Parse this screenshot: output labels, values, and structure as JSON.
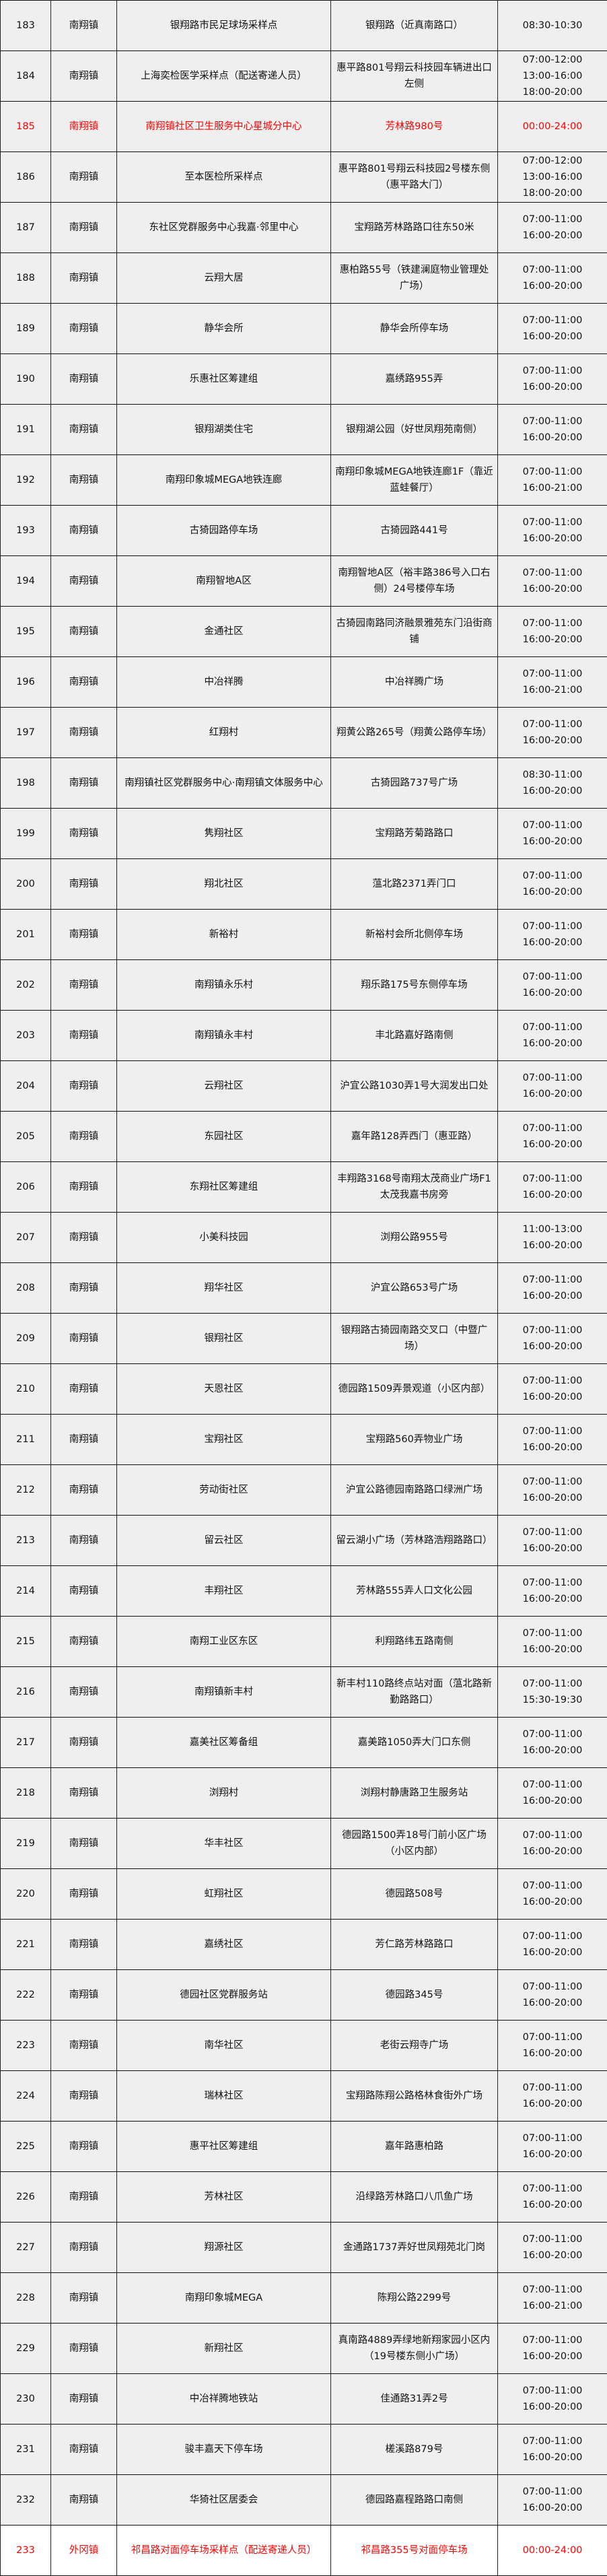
{
  "colors": {
    "highlight_text": "#ff0000",
    "row_bg": "#efefef",
    "border": "#111111"
  },
  "rows": [
    {
      "num": "183",
      "town": "南翔镇",
      "site": "银翔路市民足球场采样点",
      "addr": "银翔路（近真南路口）",
      "hours": [
        "08:30-10:30"
      ]
    },
    {
      "num": "184",
      "town": "南翔镇",
      "site": "上海奕检医学采样点（配送寄递人员）",
      "addr": "惠平路801号翔云科技园车辆进出口左侧",
      "hours": [
        "07:00-12:00",
        "13:00-16:00",
        "18:00-20:00"
      ]
    },
    {
      "num": "185",
      "town": "南翔镇",
      "site": "南翔镇社区卫生服务中心星城分中心",
      "addr": "芳林路980号",
      "hours": [
        "00:00-24:00"
      ],
      "highlight": true
    },
    {
      "num": "186",
      "town": "南翔镇",
      "site": "至本医检所采样点",
      "addr": "惠平路801号翔云科技园2号楼东侧（惠平路大门）",
      "hours": [
        "07:00-12:00",
        "13:00-16:00",
        "18:00-20:00"
      ]
    },
    {
      "num": "187",
      "town": "南翔镇",
      "site": "东社区党群服务中心我嘉·邻里中心",
      "addr": "宝翔路芳林路路口往东50米",
      "hours": [
        "07:00-11:00",
        "16:00-20:00"
      ]
    },
    {
      "num": "188",
      "town": "南翔镇",
      "site": "云翔大居",
      "addr": "惠柏路55号（铁建澜庭物业管理处广场）",
      "hours": [
        "07:00-11:00",
        "16:00-20:00"
      ]
    },
    {
      "num": "189",
      "town": "南翔镇",
      "site": "静华会所",
      "addr": "静华会所停车场",
      "hours": [
        "07:00-11:00",
        "16:00-20:00"
      ]
    },
    {
      "num": "190",
      "town": "南翔镇",
      "site": "乐惠社区筹建组",
      "addr": "嘉绣路955弄",
      "hours": [
        "07:00-11:00",
        "16:00-20:00"
      ]
    },
    {
      "num": "191",
      "town": "南翔镇",
      "site": "银翔湖类住宅",
      "addr": "银翔湖公园（好世凤翔苑南侧）",
      "hours": [
        "07:00-11:00",
        "16:00-20:00"
      ]
    },
    {
      "num": "192",
      "town": "南翔镇",
      "site": "南翔印象城MEGA地铁连廊",
      "addr": "南翔印象城MEGA地铁连廊1F（靠近蓝蛙餐厅）",
      "hours": [
        "07:00-11:00",
        "16:00-21:00"
      ]
    },
    {
      "num": "193",
      "town": "南翔镇",
      "site": "古猗园路停车场",
      "addr": "古猗园路441号",
      "hours": [
        "07:00-11:00",
        "16:00-20:00"
      ]
    },
    {
      "num": "194",
      "town": "南翔镇",
      "site": "南翔智地A区",
      "addr": "南翔智地A区（裕丰路386号入口右侧）24号楼停车场",
      "hours": [
        "07:00-11:00",
        "16:00-20:00"
      ]
    },
    {
      "num": "195",
      "town": "南翔镇",
      "site": "金通社区",
      "addr": "古猗园南路同济融景雅苑东门沿街商铺",
      "hours": [
        "07:00-11:00",
        "16:00-20:00"
      ]
    },
    {
      "num": "196",
      "town": "南翔镇",
      "site": "中冶祥腾",
      "addr": "中冶祥腾广场",
      "hours": [
        "07:00-11:00",
        "16:00-21:00"
      ]
    },
    {
      "num": "197",
      "town": "南翔镇",
      "site": "红翔村",
      "addr": "翔黄公路265号（翔黄公路停车场）",
      "hours": [
        "07:00-11:00",
        "16:00-20:00"
      ]
    },
    {
      "num": "198",
      "town": "南翔镇",
      "site": "南翔镇社区党群服务中心·南翔镇文体服务中心",
      "addr": "古猗园路737号广场",
      "hours": [
        "08:30-11:00",
        "16:00-20:00"
      ]
    },
    {
      "num": "199",
      "town": "南翔镇",
      "site": "隽翔社区",
      "addr": "宝翔路芳菊路路口",
      "hours": [
        "07:00-11:00",
        "16:00-20:00"
      ]
    },
    {
      "num": "200",
      "town": "南翔镇",
      "site": "翔北社区",
      "addr": "蕰北路2371弄门口",
      "hours": [
        "07:00-11:00",
        "16:00-20:00"
      ]
    },
    {
      "num": "201",
      "town": "南翔镇",
      "site": "新裕村",
      "addr": "新裕村会所北侧停车场",
      "hours": [
        "07:00-11:00",
        "16:00-20:00"
      ]
    },
    {
      "num": "202",
      "town": "南翔镇",
      "site": "南翔镇永乐村",
      "addr": "翔乐路175号东侧停车场",
      "hours": [
        "07:00-11:00",
        "16:00-20:00"
      ]
    },
    {
      "num": "203",
      "town": "南翔镇",
      "site": "南翔镇永丰村",
      "addr": "丰北路嘉好路南侧",
      "hours": [
        "07:00-11:00",
        "16:00-20:00"
      ]
    },
    {
      "num": "204",
      "town": "南翔镇",
      "site": "云翔社区",
      "addr": "沪宜公路1030弄1号大润发出口处",
      "hours": [
        "07:00-11:00",
        "16:00-20:00"
      ]
    },
    {
      "num": "205",
      "town": "南翔镇",
      "site": "东园社区",
      "addr": "嘉年路128弄西门（惠亚路）",
      "hours": [
        "07:00-11:00",
        "16:00-20:00"
      ]
    },
    {
      "num": "206",
      "town": "南翔镇",
      "site": "东翔社区筹建组",
      "addr": "丰翔路3168号南翔太茂商业广场F1太茂我嘉书房旁",
      "hours": [
        "07:00-11:00",
        "16:00-20:00"
      ]
    },
    {
      "num": "207",
      "town": "南翔镇",
      "site": "小美科技园",
      "addr": "浏翔公路955号",
      "hours": [
        "11:00-13:00",
        "16:00-20:00"
      ]
    },
    {
      "num": "208",
      "town": "南翔镇",
      "site": "翔华社区",
      "addr": "沪宜公路653号广场",
      "hours": [
        "07:00-11:00",
        "16:00-20:00"
      ]
    },
    {
      "num": "209",
      "town": "南翔镇",
      "site": "银翔社区",
      "addr": "银翔路古猗园南路交叉口（中暨广场）",
      "hours": [
        "07:00-11:00",
        "16:00-20:00"
      ]
    },
    {
      "num": "210",
      "town": "南翔镇",
      "site": "天恩社区",
      "addr": "德园路1509弄景观道（小区内部）",
      "hours": [
        "07:00-11:00",
        "16:00-20:00"
      ]
    },
    {
      "num": "211",
      "town": "南翔镇",
      "site": "宝翔社区",
      "addr": "宝翔路560弄物业广场",
      "hours": [
        "07:00-11:00",
        "16:00-20:00"
      ]
    },
    {
      "num": "212",
      "town": "南翔镇",
      "site": "劳动街社区",
      "addr": "沪宜公路德园南路路口绿洲广场",
      "hours": [
        "07:00-11:00",
        "16:00-20:00"
      ]
    },
    {
      "num": "213",
      "town": "南翔镇",
      "site": "留云社区",
      "addr": "留云湖小广场（芳林路浩翔路路口）",
      "hours": [
        "07:00-11:00",
        "16:00-20:00"
      ]
    },
    {
      "num": "214",
      "town": "南翔镇",
      "site": "丰翔社区",
      "addr": "芳林路555弄人口文化公园",
      "hours": [
        "07:00-11:00",
        "16:00-20:00"
      ]
    },
    {
      "num": "215",
      "town": "南翔镇",
      "site": "南翔工业区东区",
      "addr": "利翔路纬五路南侧",
      "hours": [
        "07:00-11:00",
        "16:00-20:00"
      ]
    },
    {
      "num": "216",
      "town": "南翔镇",
      "site": "南翔镇新丰村",
      "addr": "新丰村110路终点站对面（蕰北路新勤路路口）",
      "hours": [
        "07:00-11:00",
        "15:30-19:30"
      ]
    },
    {
      "num": "217",
      "town": "南翔镇",
      "site": "嘉美社区筹备组",
      "addr": "嘉美路1050弄大门口东侧",
      "hours": [
        "07:00-11:00",
        "16:00-20:00"
      ]
    },
    {
      "num": "218",
      "town": "南翔镇",
      "site": "浏翔村",
      "addr": "浏翔村静唐路卫生服务站",
      "hours": [
        "07:00-11:00",
        "16:00-20:00"
      ]
    },
    {
      "num": "219",
      "town": "南翔镇",
      "site": "华丰社区",
      "addr": "德园路1500弄18号门前小区广场（小区内部）",
      "hours": [
        "07:00-11:00",
        "16:00-20:00"
      ]
    },
    {
      "num": "220",
      "town": "南翔镇",
      "site": "虹翔社区",
      "addr": "德园路508号",
      "hours": [
        "07:00-11:00",
        "16:00-20:00"
      ]
    },
    {
      "num": "221",
      "town": "南翔镇",
      "site": "嘉绣社区",
      "addr": "芳仁路芳林路路口",
      "hours": [
        "07:00-11:00",
        "16:00-20:00"
      ]
    },
    {
      "num": "222",
      "town": "南翔镇",
      "site": "德园社区党群服务站",
      "addr": "德园路345号",
      "hours": [
        "07:00-11:00",
        "16:00-20:00"
      ]
    },
    {
      "num": "223",
      "town": "南翔镇",
      "site": "南华社区",
      "addr": "老街云翔寺广场",
      "hours": [
        "07:00-11:00",
        "16:00-20:00"
      ]
    },
    {
      "num": "224",
      "town": "南翔镇",
      "site": "瑞林社区",
      "addr": "宝翔路陈翔公路格林食街外广场",
      "hours": [
        "07:00-11:00",
        "16:00-20:00"
      ]
    },
    {
      "num": "225",
      "town": "南翔镇",
      "site": "惠平社区筹建组",
      "addr": "嘉年路惠柏路",
      "hours": [
        "07:00-11:00",
        "16:00-20:00"
      ]
    },
    {
      "num": "226",
      "town": "南翔镇",
      "site": "芳林社区",
      "addr": "沿绿路芳林路口八爪鱼广场",
      "hours": [
        "07:00-11:00",
        "16:00-20:00"
      ]
    },
    {
      "num": "227",
      "town": "南翔镇",
      "site": "翔源社区",
      "addr": "金通路1737弄好世凤翔苑北门岗",
      "hours": [
        "07:00-11:00",
        "16:00-20:00"
      ]
    },
    {
      "num": "228",
      "town": "南翔镇",
      "site": "南翔印象城MEGA",
      "addr": "陈翔公路2299号",
      "hours": [
        "07:00-11:00",
        "16:00-21:00"
      ]
    },
    {
      "num": "229",
      "town": "南翔镇",
      "site": "新翔社区",
      "addr": "真南路4889弄绿地新翔家园小区内（19号楼东侧小广场）",
      "hours": [
        "07:00-11:00",
        "16:00-20:00"
      ]
    },
    {
      "num": "230",
      "town": "南翔镇",
      "site": "中冶祥腾地铁站",
      "addr": "佳通路31弄2号",
      "hours": [
        "07:00-11:00",
        "16:00-20:00"
      ]
    },
    {
      "num": "231",
      "town": "南翔镇",
      "site": "骏丰嘉天下停车场",
      "addr": "槎溪路879号",
      "hours": [
        "07:00-11:00",
        "16:00-20:00"
      ]
    },
    {
      "num": "232",
      "town": "南翔镇",
      "site": "华猗社区居委会",
      "addr": "德园路嘉程路路口南侧",
      "hours": [
        "07:00-11:00",
        "16:00-20:00"
      ]
    },
    {
      "num": "233",
      "town": "外冈镇",
      "site": "祁昌路对面停车场采样点（配送寄递人员）",
      "addr": "祁昌路355号对面停车场",
      "hours": [
        "00:00-24:00"
      ],
      "highlight": true,
      "white": true
    }
  ]
}
